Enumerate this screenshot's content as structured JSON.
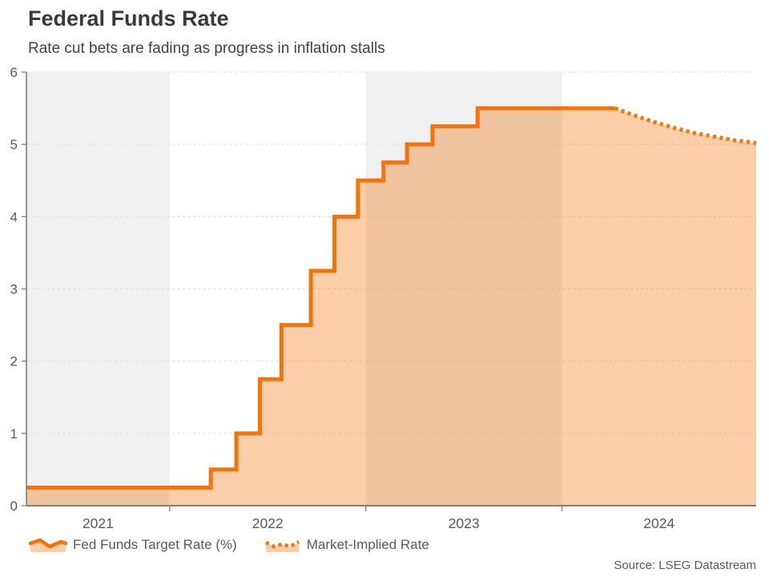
{
  "header": {
    "title": "Federal Funds Rate",
    "subtitle": "Rate cut bets are fading as progress in inflation stalls"
  },
  "legend": [
    {
      "label": "Fed Funds Target Rate (%)",
      "style": "solid"
    },
    {
      "label": "Market-Implied Rate",
      "style": "dotted"
    }
  ],
  "source": "Source: LSEG Datastream",
  "colors": {
    "line": "#f4730b",
    "fill_opacity": 0.35,
    "band": "#f0f0f0",
    "grid": "#dbdbdb",
    "axis": "#7f7f7f",
    "tick_text": "#595959",
    "title_text": "#3a3a3a"
  },
  "chart_data": {
    "type": "area",
    "title": "Federal Funds Rate",
    "subtitle": "Rate cut bets are fading as progress in inflation stalls",
    "xlabel": "",
    "ylabel": "",
    "xlim": [
      2021.27,
      2024.99
    ],
    "ylim": [
      0,
      6
    ],
    "yticks": [
      0,
      1,
      2,
      3,
      4,
      5,
      6
    ],
    "ytick_labels": [
      "0",
      "1",
      "2",
      "3",
      "4",
      "5",
      "6"
    ],
    "x_boundaries": [
      2022,
      2023,
      2024
    ],
    "year_labels": [
      "2021",
      "2022",
      "2023",
      "2024"
    ],
    "background_bands": [
      [
        2021.27,
        2022
      ],
      [
        2023,
        2024
      ]
    ],
    "grid": "dashed-horizontal",
    "legend_position": "bottom-left",
    "series": [
      {
        "name": "Fed Funds Target Rate (%)",
        "style": "step-solid",
        "points": [
          [
            2021.27,
            0.25
          ],
          [
            2022.21,
            0.5
          ],
          [
            2022.34,
            1.0
          ],
          [
            2022.46,
            1.75
          ],
          [
            2022.57,
            2.5
          ],
          [
            2022.72,
            3.25
          ],
          [
            2022.84,
            4.0
          ],
          [
            2022.96,
            4.5
          ],
          [
            2023.09,
            4.75
          ],
          [
            2023.21,
            5.0
          ],
          [
            2023.34,
            5.25
          ],
          [
            2023.57,
            5.5
          ],
          [
            2024.27,
            5.5
          ]
        ]
      },
      {
        "name": "Market-Implied Rate",
        "style": "dotted",
        "points": [
          [
            2024.27,
            5.5
          ],
          [
            2024.37,
            5.4
          ],
          [
            2024.47,
            5.31
          ],
          [
            2024.57,
            5.23
          ],
          [
            2024.67,
            5.16
          ],
          [
            2024.77,
            5.11
          ],
          [
            2024.87,
            5.06
          ],
          [
            2024.93,
            5.04
          ],
          [
            2024.99,
            5.02
          ]
        ]
      }
    ]
  }
}
